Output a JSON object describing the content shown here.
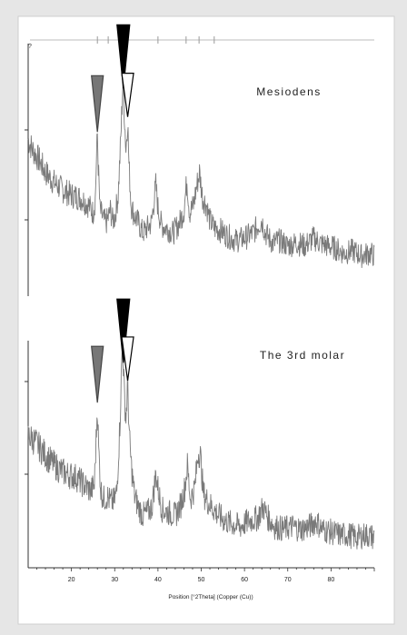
{
  "chart_data": {
    "type": "line",
    "xlabel": "Position [°2Theta] (Copper (Cu))",
    "xlim": [
      10,
      90
    ],
    "x_ticks": [
      20,
      30,
      40,
      50,
      60,
      70,
      80
    ],
    "x_tick_labels": [
      "20",
      "30",
      "40",
      "50",
      "60",
      "70",
      "80"
    ],
    "top_axis_markers": [
      26,
      28.5,
      32,
      40,
      46.5,
      49.5,
      53
    ],
    "corner_label": "?",
    "panels": [
      {
        "label": "Mesiodens",
        "color": "#7a7a7a",
        "points": [
          [
            10.0,
            0.62
          ],
          [
            11.0,
            0.58
          ],
          [
            12.5,
            0.54
          ],
          [
            14.0,
            0.49
          ],
          [
            16.0,
            0.45
          ],
          [
            18.0,
            0.42
          ],
          [
            20.0,
            0.4
          ],
          [
            22.0,
            0.39
          ],
          [
            24.0,
            0.36
          ],
          [
            25.0,
            0.33
          ],
          [
            25.5,
            0.38
          ],
          [
            25.8,
            0.55
          ],
          [
            26.0,
            0.64
          ],
          [
            26.2,
            0.52
          ],
          [
            26.6,
            0.34
          ],
          [
            27.5,
            0.3
          ],
          [
            28.0,
            0.29
          ],
          [
            28.5,
            0.31
          ],
          [
            29.0,
            0.34
          ],
          [
            29.5,
            0.3
          ],
          [
            30.0,
            0.31
          ],
          [
            30.8,
            0.4
          ],
          [
            31.4,
            0.62
          ],
          [
            31.9,
            0.85
          ],
          [
            32.3,
            0.7
          ],
          [
            32.6,
            0.58
          ],
          [
            33.0,
            0.7
          ],
          [
            33.3,
            0.52
          ],
          [
            33.8,
            0.36
          ],
          [
            34.5,
            0.32
          ],
          [
            35.5,
            0.29
          ],
          [
            36.5,
            0.25
          ],
          [
            37.5,
            0.27
          ],
          [
            38.5,
            0.29
          ],
          [
            39.5,
            0.44
          ],
          [
            40.0,
            0.35
          ],
          [
            40.8,
            0.28
          ],
          [
            42.0,
            0.27
          ],
          [
            43.5,
            0.25
          ],
          [
            45.0,
            0.29
          ],
          [
            46.0,
            0.34
          ],
          [
            46.7,
            0.46
          ],
          [
            47.3,
            0.33
          ],
          [
            48.2,
            0.36
          ],
          [
            49.0,
            0.44
          ],
          [
            49.6,
            0.49
          ],
          [
            50.3,
            0.39
          ],
          [
            51.2,
            0.36
          ],
          [
            52.0,
            0.3
          ],
          [
            53.0,
            0.27
          ],
          [
            54.5,
            0.26
          ],
          [
            56.0,
            0.24
          ],
          [
            58.0,
            0.22
          ],
          [
            60.0,
            0.23
          ],
          [
            62.0,
            0.25
          ],
          [
            64.0,
            0.3
          ],
          [
            64.8,
            0.25
          ],
          [
            66.5,
            0.21
          ],
          [
            68.0,
            0.22
          ],
          [
            70.0,
            0.2
          ],
          [
            72.0,
            0.21
          ],
          [
            74.0,
            0.2
          ],
          [
            76.0,
            0.23
          ],
          [
            77.5,
            0.21
          ],
          [
            79.0,
            0.2
          ],
          [
            81.0,
            0.19
          ],
          [
            83.0,
            0.17
          ],
          [
            85.0,
            0.18
          ],
          [
            87.0,
            0.16
          ],
          [
            89.0,
            0.17
          ],
          [
            90.0,
            0.16
          ]
        ],
        "arrows": [
          {
            "x": 26.0,
            "style": "grey"
          },
          {
            "x": 32.0,
            "style": "black"
          },
          {
            "x": 33.0,
            "style": "white"
          }
        ]
      },
      {
        "label": "The 3rd molar",
        "color": "#7a7a7a",
        "points": [
          [
            10.0,
            0.48
          ],
          [
            11.5,
            0.46
          ],
          [
            13.0,
            0.43
          ],
          [
            15.0,
            0.39
          ],
          [
            17.0,
            0.36
          ],
          [
            19.0,
            0.34
          ],
          [
            21.0,
            0.33
          ],
          [
            23.0,
            0.3
          ],
          [
            24.5,
            0.28
          ],
          [
            25.3,
            0.3
          ],
          [
            25.7,
            0.46
          ],
          [
            26.0,
            0.59
          ],
          [
            26.3,
            0.43
          ],
          [
            26.8,
            0.28
          ],
          [
            27.5,
            0.25
          ],
          [
            28.3,
            0.26
          ],
          [
            29.0,
            0.24
          ],
          [
            29.8,
            0.24
          ],
          [
            30.5,
            0.28
          ],
          [
            31.2,
            0.52
          ],
          [
            31.8,
            0.83
          ],
          [
            32.2,
            0.64
          ],
          [
            32.6,
            0.54
          ],
          [
            33.0,
            0.67
          ],
          [
            33.4,
            0.47
          ],
          [
            33.9,
            0.36
          ],
          [
            34.6,
            0.26
          ],
          [
            35.5,
            0.22
          ],
          [
            36.5,
            0.19
          ],
          [
            37.5,
            0.2
          ],
          [
            38.6,
            0.22
          ],
          [
            39.5,
            0.34
          ],
          [
            40.2,
            0.27
          ],
          [
            41.0,
            0.21
          ],
          [
            42.5,
            0.2
          ],
          [
            44.0,
            0.19
          ],
          [
            45.3,
            0.23
          ],
          [
            46.2,
            0.29
          ],
          [
            46.8,
            0.37
          ],
          [
            47.5,
            0.25
          ],
          [
            48.5,
            0.29
          ],
          [
            49.3,
            0.42
          ],
          [
            49.8,
            0.41
          ],
          [
            50.5,
            0.27
          ],
          [
            51.5,
            0.24
          ],
          [
            52.5,
            0.22
          ],
          [
            54.0,
            0.19
          ],
          [
            55.5,
            0.17
          ],
          [
            57.0,
            0.16
          ],
          [
            59.0,
            0.15
          ],
          [
            61.0,
            0.17
          ],
          [
            63.0,
            0.18
          ],
          [
            64.3,
            0.22
          ],
          [
            65.5,
            0.18
          ],
          [
            67.0,
            0.15
          ],
          [
            69.0,
            0.14
          ],
          [
            71.0,
            0.15
          ],
          [
            73.0,
            0.14
          ],
          [
            75.0,
            0.15
          ],
          [
            76.5,
            0.17
          ],
          [
            78.0,
            0.14
          ],
          [
            80.0,
            0.13
          ],
          [
            82.0,
            0.12
          ],
          [
            84.0,
            0.12
          ],
          [
            86.0,
            0.11
          ],
          [
            88.0,
            0.12
          ],
          [
            90.0,
            0.11
          ]
        ],
        "arrows": [
          {
            "x": 26.0,
            "style": "grey"
          },
          {
            "x": 32.0,
            "style": "black"
          },
          {
            "x": 33.0,
            "style": "white"
          }
        ]
      }
    ]
  }
}
